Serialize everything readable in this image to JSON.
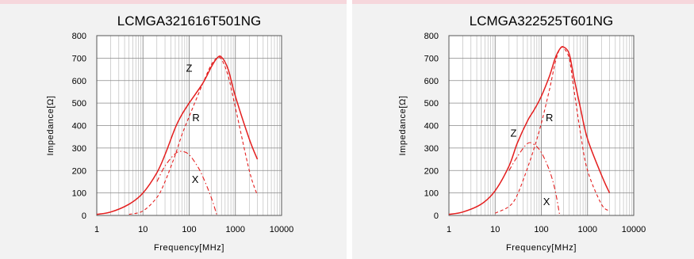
{
  "chart_data": [
    {
      "type": "line",
      "title": "LCMGA321616T501NG",
      "xlabel": "Frequency[MHz]",
      "ylabel": "Impedance[Ω]",
      "xscale": "log",
      "xlim": [
        1,
        10000
      ],
      "ylim": [
        0,
        800
      ],
      "xticks": [
        "1",
        "10",
        "100",
        "1000",
        "10000"
      ],
      "yticks": [
        "0",
        "100",
        "200",
        "300",
        "400",
        "500",
        "600",
        "700",
        "800"
      ],
      "grid": true,
      "series": [
        {
          "name": "Z",
          "style": "solid",
          "color": "#e41e1e",
          "x": [
            1,
            2,
            5,
            10,
            20,
            30,
            50,
            70,
            100,
            200,
            300,
            400,
            500,
            700,
            1000,
            2000,
            3000
          ],
          "y": [
            5,
            15,
            50,
            100,
            190,
            270,
            390,
            450,
            500,
            590,
            660,
            700,
            705,
            650,
            530,
            340,
            250
          ]
        },
        {
          "name": "R",
          "style": "dashed",
          "color": "#e41e1e",
          "x": [
            5,
            10,
            20,
            30,
            50,
            70,
            100,
            200,
            300,
            400,
            500,
            700,
            1000,
            2000,
            3000
          ],
          "y": [
            5,
            20,
            80,
            150,
            270,
            360,
            440,
            590,
            670,
            700,
            695,
            620,
            480,
            200,
            90
          ]
        },
        {
          "name": "X",
          "style": "dashdot",
          "color": "#e41e1e",
          "x": [
            20,
            30,
            50,
            70,
            100,
            150,
            200,
            300,
            400
          ],
          "y": [
            150,
            220,
            275,
            285,
            270,
            220,
            170,
            80,
            0
          ]
        }
      ],
      "labels": [
        {
          "text": "Z",
          "x": 100,
          "y": 640
        },
        {
          "text": "R",
          "x": 140,
          "y": 420
        },
        {
          "text": "X",
          "x": 135,
          "y": 145
        }
      ]
    },
    {
      "type": "line",
      "title": "LCMGA322525T601NG",
      "xlabel": "Frequency[MHz]",
      "ylabel": "Impedance[Ω]",
      "xscale": "log",
      "xlim": [
        1,
        10000
      ],
      "ylim": [
        0,
        800
      ],
      "xticks": [
        "1",
        "10",
        "100",
        "1000",
        "10000"
      ],
      "yticks": [
        "0",
        "100",
        "200",
        "300",
        "400",
        "500",
        "600",
        "700",
        "800"
      ],
      "grid": true,
      "series": [
        {
          "name": "Z",
          "style": "solid",
          "color": "#e41e1e",
          "x": [
            1,
            2,
            5,
            10,
            20,
            30,
            50,
            70,
            100,
            150,
            200,
            250,
            300,
            400,
            500,
            700,
            1000,
            2000,
            3000
          ],
          "y": [
            5,
            15,
            50,
            110,
            220,
            320,
            420,
            470,
            530,
            620,
            700,
            740,
            750,
            720,
            620,
            480,
            340,
            180,
            100
          ]
        },
        {
          "name": "R",
          "style": "dashed",
          "color": "#e41e1e",
          "x": [
            10,
            20,
            30,
            50,
            70,
            100,
            150,
            200,
            250,
            300,
            400,
            500,
            700,
            1000,
            2000,
            3000
          ],
          "y": [
            10,
            40,
            90,
            210,
            300,
            410,
            560,
            680,
            740,
            745,
            700,
            570,
            370,
            200,
            50,
            20
          ]
        },
        {
          "name": "X",
          "style": "dashdot",
          "color": "#e41e1e",
          "x": [
            20,
            30,
            50,
            70,
            100,
            150,
            200,
            250
          ],
          "y": [
            200,
            260,
            320,
            315,
            280,
            200,
            110,
            0
          ]
        }
      ],
      "labels": [
        {
          "text": "Z",
          "x": 25,
          "y": 350
        },
        {
          "text": "R",
          "x": 150,
          "y": 420
        },
        {
          "text": "X",
          "x": 130,
          "y": 45
        }
      ]
    }
  ]
}
